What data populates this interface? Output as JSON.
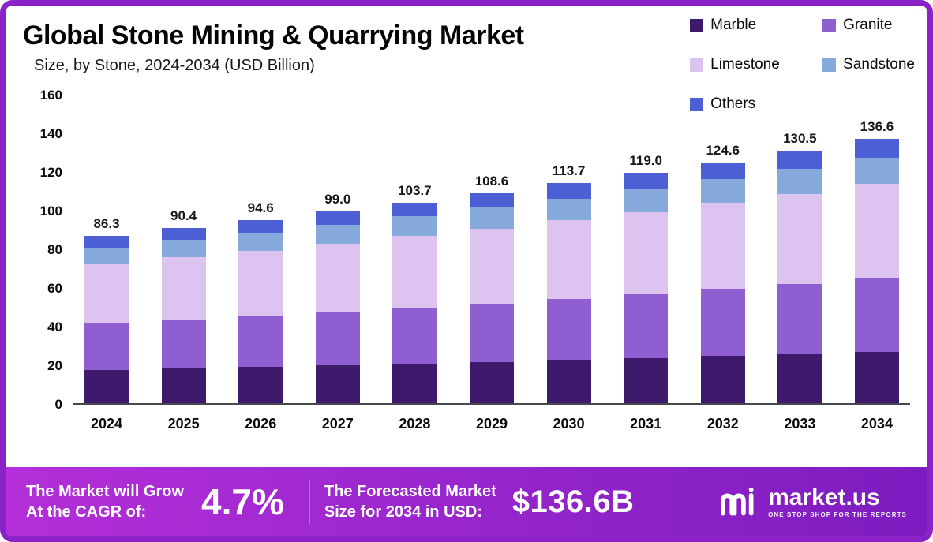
{
  "header": {
    "title": "Global Stone Mining & Quarrying Market",
    "subtitle": "Size, by Stone, 2024-2034 (USD Billion)"
  },
  "chart_data": {
    "type": "bar",
    "stacked": true,
    "title": "Global Stone Mining & Quarrying Market Size, by Stone, 2024-2034 (USD Billion)",
    "categories": [
      "2024",
      "2025",
      "2026",
      "2027",
      "2028",
      "2029",
      "2030",
      "2031",
      "2032",
      "2033",
      "2034"
    ],
    "series": [
      {
        "name": "Marble",
        "color": "#3e1a6d",
        "values": [
          17.0,
          17.8,
          18.6,
          19.4,
          20.3,
          21.2,
          22.2,
          23.2,
          24.3,
          25.4,
          26.6
        ]
      },
      {
        "name": "Granite",
        "color": "#8f5ed1",
        "values": [
          24.0,
          25.2,
          26.4,
          27.6,
          28.9,
          30.3,
          31.7,
          33.2,
          34.7,
          36.3,
          38.0
        ]
      },
      {
        "name": "Limestone",
        "color": "#dcc3f0",
        "values": [
          31.0,
          32.4,
          33.9,
          35.5,
          37.1,
          38.8,
          40.6,
          42.5,
          44.5,
          46.5,
          48.7
        ]
      },
      {
        "name": "Sandstone",
        "color": "#84a9da",
        "values": [
          8.5,
          8.9,
          9.3,
          9.7,
          10.2,
          10.7,
          11.2,
          11.7,
          12.2,
          12.8,
          13.4
        ]
      },
      {
        "name": "Others",
        "color": "#4c5fd5",
        "values": [
          5.8,
          6.1,
          6.4,
          6.8,
          7.2,
          7.6,
          8.0,
          8.4,
          8.9,
          9.5,
          9.9
        ]
      }
    ],
    "totals": [
      "86.3",
      "90.4",
      "94.6",
      "99.0",
      "103.7",
      "108.6",
      "113.7",
      "119.0",
      "124.6",
      "130.5",
      "136.6"
    ],
    "ylim": [
      0,
      160
    ],
    "yticks": [
      0,
      20,
      40,
      60,
      80,
      100,
      120,
      140,
      160
    ],
    "legend_position": "top-right",
    "grid": false
  },
  "footer": {
    "cagr_label_line1": "The Market will Grow",
    "cagr_label_line2": "At the CAGR of:",
    "cagr_value": "4.7%",
    "forecast_label_line1": "The Forecasted Market",
    "forecast_label_line2": "Size for 2034 in USD:",
    "forecast_value": "$136.6B",
    "brand_name": "market.us",
    "brand_tagline": "ONE STOP SHOP FOR THE REPORTS"
  },
  "colors": {
    "frame_border": "#8b22c7",
    "footer_gradient_start": "#b42fd8",
    "footer_gradient_end": "#7d1cc0",
    "axis_line": "#47474f"
  }
}
